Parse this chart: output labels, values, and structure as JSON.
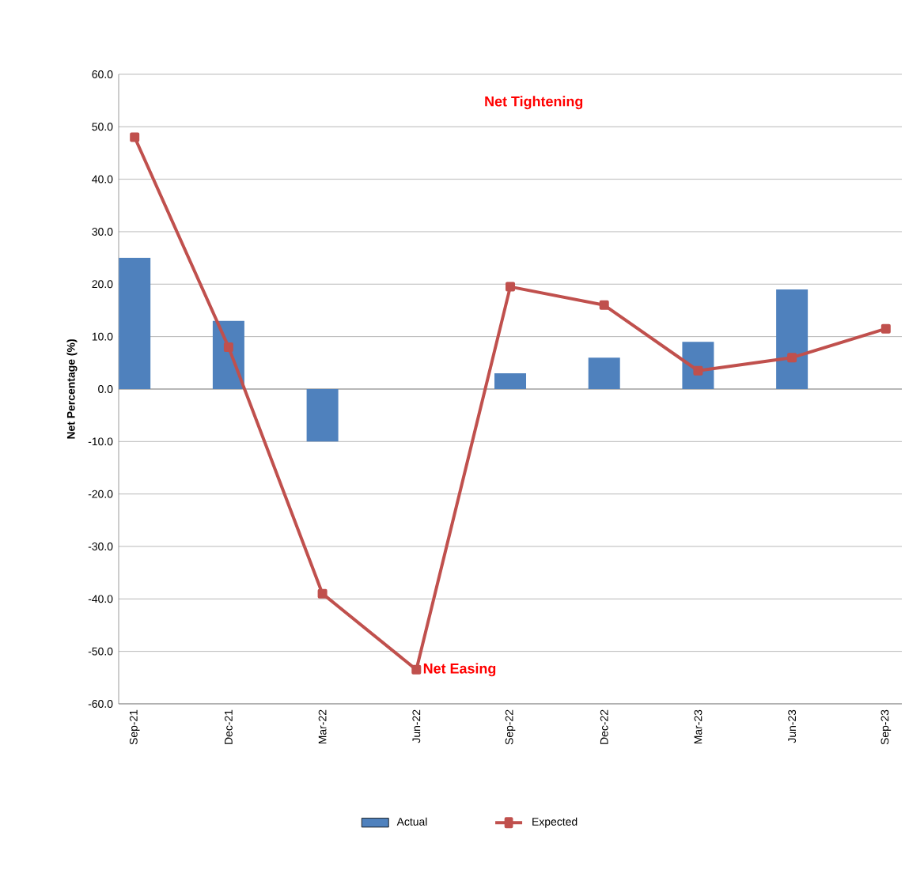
{
  "chart_data": {
    "type": "bar",
    "ylabel": "Net Percentage (%)",
    "categories": [
      "Sep-21",
      "Dec-21",
      "Mar-22",
      "Jun-22",
      "Sep-22",
      "Dec-22",
      "Mar-23",
      "Jun-23",
      "Sep-23"
    ],
    "series": [
      {
        "name": "Actual",
        "color": "#4f81bd",
        "values": [
          25,
          13,
          -10,
          null,
          3,
          6,
          9,
          19,
          null
        ]
      },
      {
        "name": "Expected",
        "type": "line",
        "color": "#c0504d",
        "marker": "square",
        "values": [
          48,
          8,
          -39,
          -53.5,
          19.5,
          16,
          3.5,
          6,
          11.5
        ]
      }
    ],
    "ylim": [
      -60,
      60
    ],
    "yticks": [
      {
        "value": -60,
        "label": "-60.0"
      },
      {
        "value": -50,
        "label": "-50.0"
      },
      {
        "value": -40,
        "label": "-40.0"
      },
      {
        "value": -30,
        "label": "-30.0"
      },
      {
        "value": -20,
        "label": "-20.0"
      },
      {
        "value": -10,
        "label": "-10.0"
      },
      {
        "value": 0,
        "label": "0.0"
      },
      {
        "value": 10,
        "label": "10.0"
      },
      {
        "value": 20,
        "label": "20.0"
      },
      {
        "value": 30,
        "label": "30.0"
      },
      {
        "value": 40,
        "label": "40.0"
      },
      {
        "value": 50,
        "label": "50.0"
      },
      {
        "value": 60,
        "label": "60.0"
      }
    ],
    "grid": "y",
    "legend": "bottom",
    "annotations": [
      "Net Tightening",
      {
        "text": "Net Easing",
        "x": "Jun-22",
        "y": -53.5
      }
    ]
  }
}
